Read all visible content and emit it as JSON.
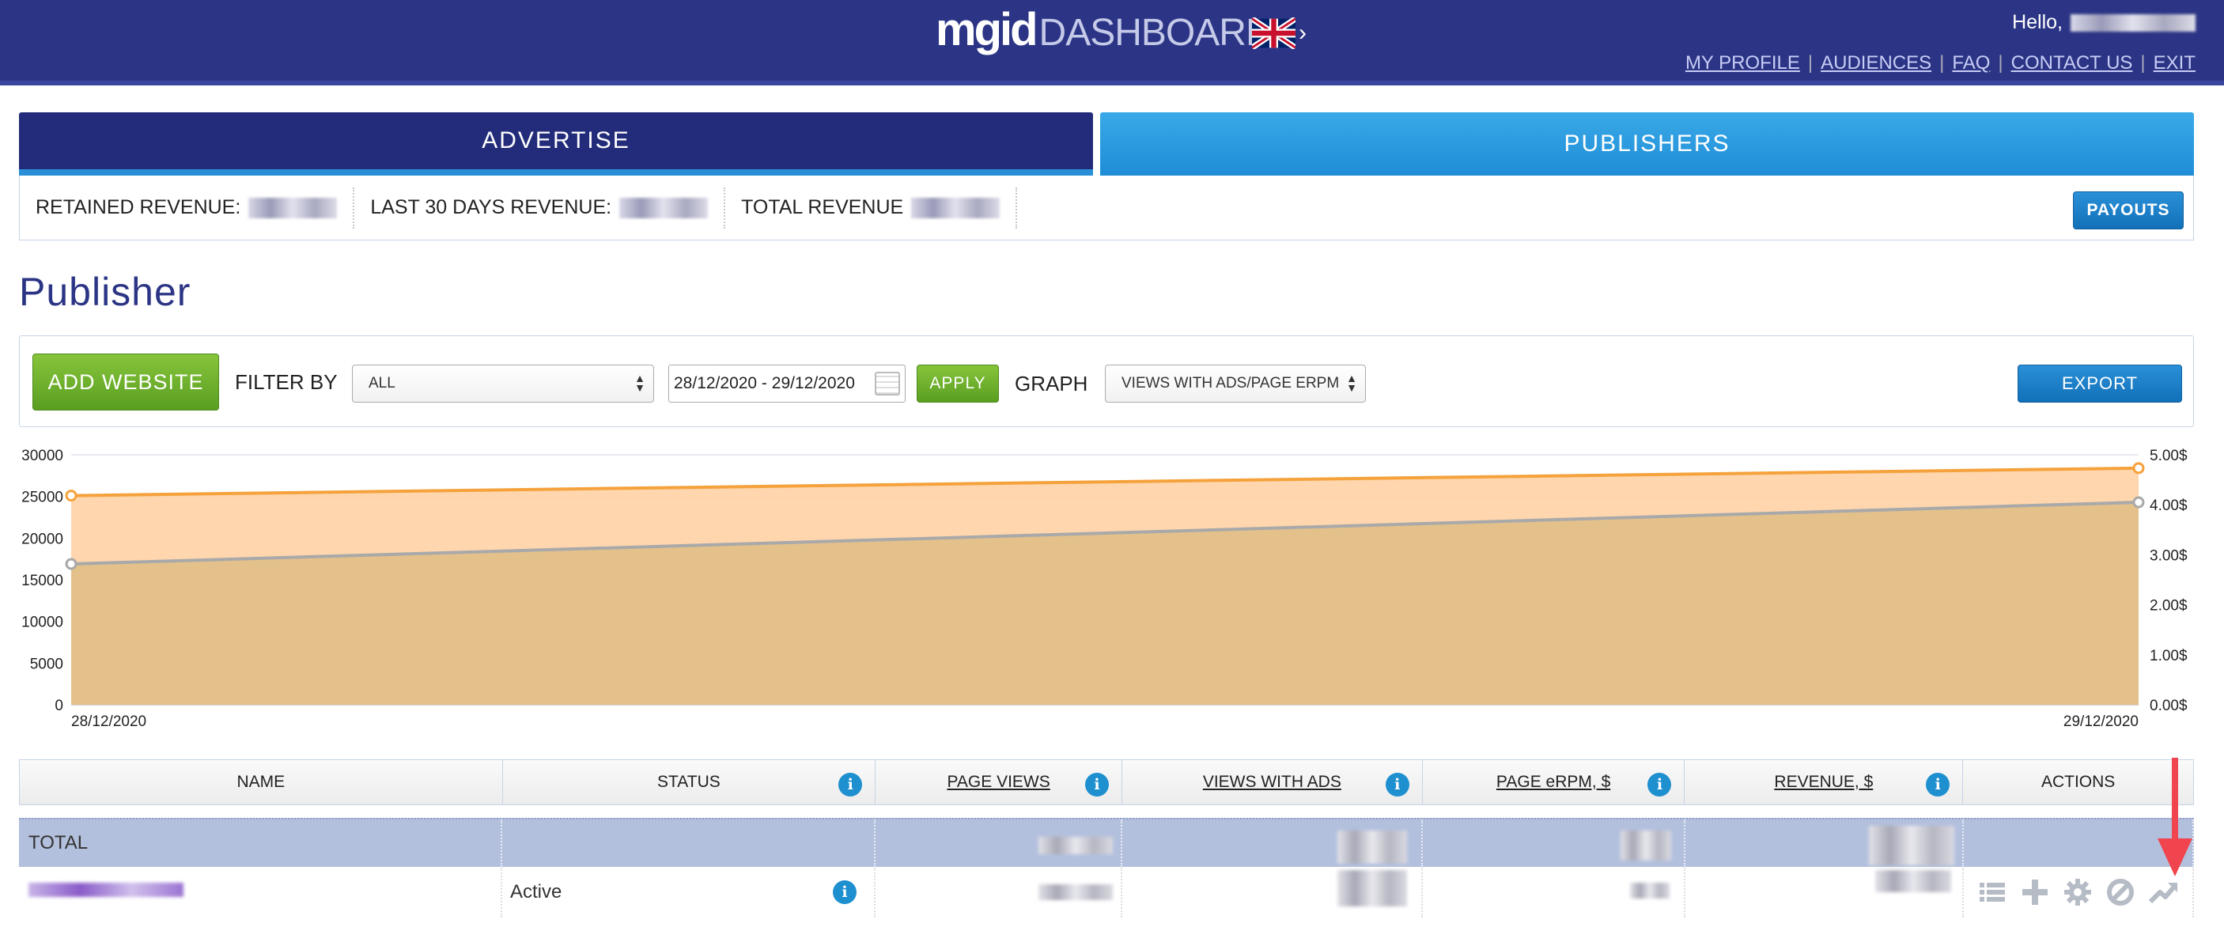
{
  "header": {
    "logo_mgid": "mgid",
    "logo_dashboard": "DASHBOARD",
    "hello": "Hello,",
    "links": [
      "MY PROFILE",
      "AUDIENCES",
      "FAQ",
      "CONTACT US",
      "EXIT"
    ]
  },
  "tabs": [
    {
      "label": "ADVERTISE"
    },
    {
      "label": "PUBLISHERS"
    }
  ],
  "revenue": {
    "retained": "RETAINED REVENUE:",
    "last30": "LAST 30 DAYS REVENUE:",
    "total": "TOTAL REVENUE",
    "payouts_button": "PAYOUTS"
  },
  "page_title": "Publisher",
  "filter": {
    "add_website": "ADD WEBSITE",
    "filter_by": "FILTER BY",
    "filter_value": "ALL",
    "date_range": "28/12/2020 - 29/12/2020",
    "apply": "APPLY",
    "graph_label": "GRAPH",
    "graph_value": "VIEWS WITH ADS/PAGE ERPM",
    "export": "EXPORT"
  },
  "chart_data": {
    "type": "area",
    "x": [
      "28/12/2020",
      "29/12/2020"
    ],
    "y_left_ticks": [
      "0",
      "5000",
      "10000",
      "15000",
      "20000",
      "25000",
      "30000"
    ],
    "y_right_ticks": [
      "0.00$",
      "1.00$",
      "2.00$",
      "3.00$",
      "4.00$",
      "5.00$"
    ],
    "ylim_left": [
      0,
      30000
    ],
    "ylim_right": [
      0,
      5
    ],
    "series": [
      {
        "axis": "left",
        "values": [
          25100,
          28400
        ],
        "color": "#f5a23c",
        "fill": "#ffd3a6"
      },
      {
        "axis": "left",
        "values": [
          16900,
          24300
        ],
        "color": "#a9a9a9",
        "fill": "#e2bf88"
      }
    ],
    "grid": true
  },
  "table": {
    "columns": [
      "NAME",
      "STATUS",
      "PAGE VIEWS",
      "VIEWS WITH ADS",
      "PAGE eRPM, $",
      "REVENUE, $",
      "ACTIONS"
    ],
    "total_label": "TOTAL",
    "rows": [
      {
        "status": "Active"
      }
    ]
  },
  "colors": {
    "header_bg": "#2c3585",
    "accent_blue": "#1f8dd6",
    "accent_green": "#6cb12c",
    "total_row": "#b3c0dd"
  }
}
